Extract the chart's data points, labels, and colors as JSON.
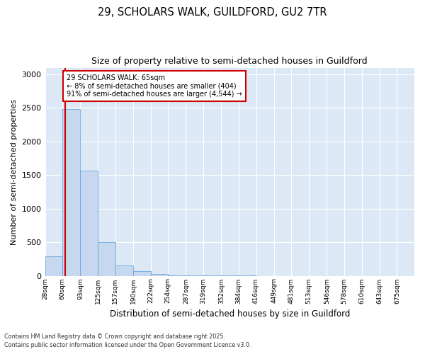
{
  "title1": "29, SCHOLARS WALK, GUILDFORD, GU2 7TR",
  "title2": "Size of property relative to semi-detached houses in Guildford",
  "xlabel": "Distribution of semi-detached houses by size in Guildford",
  "ylabel": "Number of semi-detached properties",
  "annotation_line1": "29 SCHOLARS WALK: 65sqm",
  "annotation_line2": "← 8% of semi-detached houses are smaller (404)",
  "annotation_line3": "91% of semi-detached houses are larger (4,544) →",
  "bin_labels": [
    "28sqm",
    "60sqm",
    "93sqm",
    "125sqm",
    "157sqm",
    "190sqm",
    "222sqm",
    "254sqm",
    "287sqm",
    "319sqm",
    "352sqm",
    "384sqm",
    "416sqm",
    "449sqm",
    "481sqm",
    "513sqm",
    "546sqm",
    "578sqm",
    "610sqm",
    "643sqm",
    "675sqm"
  ],
  "bin_edges": [
    28,
    60,
    93,
    125,
    157,
    190,
    222,
    254,
    287,
    319,
    352,
    384,
    416,
    449,
    481,
    513,
    546,
    578,
    610,
    643,
    675
  ],
  "bar_values": [
    290,
    2480,
    1565,
    505,
    155,
    65,
    30,
    10,
    5,
    2,
    1,
    1,
    0,
    0,
    0,
    0,
    0,
    0,
    0,
    0
  ],
  "bar_color": "#c5d8f0",
  "bar_edge_color": "#5b9bd5",
  "vline_color": "#cc0000",
  "vline_x": 65,
  "background_color": "#dce8f5",
  "grid_color": "#ffffff",
  "annotation_box_color": "#ffffff",
  "annotation_box_edge": "#cc0000",
  "footnote1": "Contains HM Land Registry data © Crown copyright and database right 2025.",
  "footnote2": "Contains public sector information licensed under the Open Government Licence v3.0.",
  "ylim": [
    0,
    3100
  ],
  "yticks": [
    0,
    500,
    1000,
    1500,
    2000,
    2500,
    3000
  ]
}
